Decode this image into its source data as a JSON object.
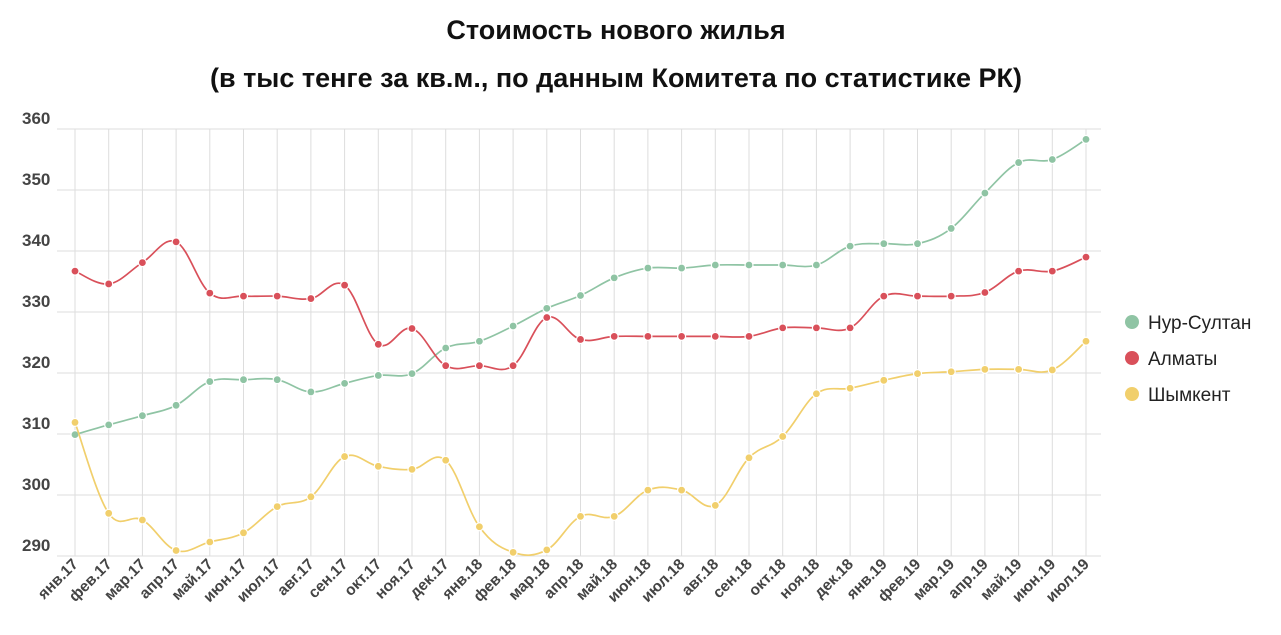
{
  "chart_data": {
    "type": "line",
    "title": "Стоимость нового жилья",
    "subtitle": "(в тыс тенге за кв.м., по данным Комитета по статистике РК)",
    "xlabel": "",
    "ylabel": "",
    "ylim": [
      288,
      362
    ],
    "yticks": [
      290,
      300,
      310,
      320,
      330,
      340,
      350,
      360
    ],
    "grid": true,
    "legend_position": "right",
    "categories": [
      "янв.17",
      "фев.17",
      "мар.17",
      "апр.17",
      "май.17",
      "июн.17",
      "июл.17",
      "авг.17",
      "сен.17",
      "окт.17",
      "ноя.17",
      "дек.17",
      "янв.18",
      "фев.18",
      "мар.18",
      "апр.18",
      "май.18",
      "июн.18",
      "июл.18",
      "авг.18",
      "сен.18",
      "окт.18",
      "ноя.18",
      "дек.18",
      "янв.19",
      "фев.19",
      "мар.19",
      "апр.19",
      "май.19",
      "июн.19",
      "июл.19"
    ],
    "series": [
      {
        "name": "Нур-Султан",
        "color": "#8fc4a4",
        "values": [
          309.9,
          311.5,
          313.0,
          314.7,
          318.6,
          318.9,
          318.9,
          316.9,
          318.3,
          319.6,
          319.9,
          324.1,
          325.2,
          327.7,
          330.6,
          332.7,
          335.6,
          337.2,
          337.2,
          337.7,
          337.7,
          337.7,
          337.7,
          340.8,
          341.2,
          341.2,
          343.7,
          349.5,
          354.5,
          355.0,
          358.3
        ]
      },
      {
        "name": "Алматы",
        "color": "#d9505a",
        "values": [
          336.7,
          334.6,
          338.1,
          341.5,
          333.1,
          332.6,
          332.6,
          332.2,
          334.4,
          324.7,
          327.3,
          321.2,
          321.2,
          321.2,
          329.1,
          325.5,
          326.0,
          326.0,
          326.0,
          326.0,
          326.0,
          327.4,
          327.4,
          327.4,
          332.6,
          332.6,
          332.6,
          333.2,
          336.7,
          336.7,
          339.0
        ]
      },
      {
        "name": "Шымкент",
        "color": "#f1cf6c",
        "values": [
          311.9,
          297.0,
          295.9,
          290.9,
          292.3,
          293.8,
          298.1,
          299.7,
          306.3,
          304.7,
          304.2,
          305.7,
          294.8,
          290.6,
          291.0,
          296.5,
          296.5,
          300.8,
          300.8,
          298.3,
          306.1,
          309.6,
          316.6,
          317.5,
          318.8,
          319.9,
          320.2,
          320.6,
          320.6,
          320.5,
          325.2
        ]
      }
    ]
  }
}
